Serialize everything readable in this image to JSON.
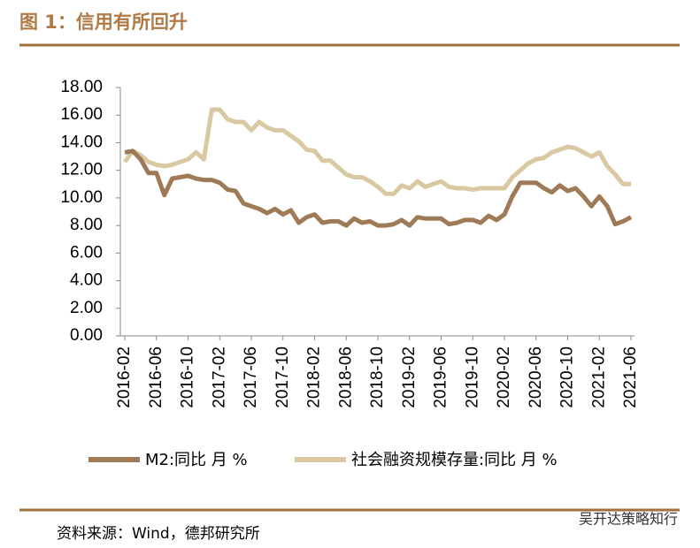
{
  "header": {
    "title": "图 1：信用有所回升"
  },
  "chart_data": {
    "type": "line",
    "categories": [
      "2016-02",
      null,
      null,
      null,
      "2016-06",
      null,
      null,
      null,
      "2016-10",
      null,
      null,
      null,
      "2017-02",
      null,
      null,
      null,
      "2017-06",
      null,
      null,
      null,
      "2017-10",
      null,
      null,
      null,
      "2018-02",
      null,
      null,
      null,
      "2018-06",
      null,
      null,
      null,
      "2018-10",
      null,
      null,
      null,
      "2019-02",
      null,
      null,
      null,
      "2019-06",
      null,
      null,
      null,
      "2019-10",
      null,
      null,
      null,
      "2020-02",
      null,
      null,
      null,
      "2020-06",
      null,
      null,
      null,
      "2020-10",
      null,
      null,
      null,
      "2021-02",
      null,
      null,
      null,
      "2021-06"
    ],
    "series": [
      {
        "name": "M2:同比 月 %",
        "color": "#9e7b56",
        "values": [
          13.3,
          13.4,
          12.8,
          11.8,
          11.8,
          10.2,
          11.4,
          11.5,
          11.6,
          11.4,
          11.3,
          11.3,
          11.1,
          10.6,
          10.5,
          9.6,
          9.4,
          9.2,
          8.9,
          9.2,
          8.8,
          9.1,
          8.2,
          8.6,
          8.8,
          8.2,
          8.3,
          8.3,
          8.0,
          8.5,
          8.2,
          8.3,
          8.0,
          8.0,
          8.1,
          8.4,
          8.0,
          8.6,
          8.5,
          8.5,
          8.5,
          8.1,
          8.2,
          8.4,
          8.4,
          8.2,
          8.7,
          8.4,
          8.8,
          10.1,
          11.1,
          11.1,
          11.1,
          10.7,
          10.4,
          10.9,
          10.5,
          10.7,
          10.1,
          9.4,
          10.1,
          9.4,
          8.1,
          8.3,
          8.6
        ]
      },
      {
        "name": "社会融资规模存量:同比 月 %",
        "color": "#d9c9a2",
        "values": [
          12.6,
          13.4,
          13.1,
          12.6,
          12.4,
          12.3,
          12.4,
          12.6,
          12.8,
          13.3,
          12.8,
          16.4,
          16.4,
          15.7,
          15.5,
          15.5,
          14.9,
          15.5,
          15.1,
          14.9,
          14.9,
          14.5,
          14.1,
          13.5,
          13.4,
          12.7,
          12.7,
          12.2,
          11.7,
          11.5,
          11.5,
          11.2,
          10.8,
          10.3,
          10.3,
          10.9,
          10.7,
          11.2,
          10.8,
          11.0,
          11.2,
          10.8,
          10.7,
          10.7,
          10.6,
          10.7,
          10.7,
          10.7,
          10.7,
          11.5,
          12.0,
          12.5,
          12.8,
          12.9,
          13.3,
          13.5,
          13.7,
          13.6,
          13.3,
          13.0,
          13.3,
          12.3,
          11.7,
          11.0,
          11.0
        ]
      }
    ],
    "ylim": [
      0,
      18
    ],
    "yticks": [
      {
        "value": 0,
        "label": "0.00"
      },
      {
        "value": 2,
        "label": "2.00"
      },
      {
        "value": 4,
        "label": "4.00"
      },
      {
        "value": 6,
        "label": "6.00"
      },
      {
        "value": 8,
        "label": "8.00"
      },
      {
        "value": 10,
        "label": "10.00"
      },
      {
        "value": 12,
        "label": "12.00"
      },
      {
        "value": 14,
        "label": "14.00"
      },
      {
        "value": 16,
        "label": "16.00"
      },
      {
        "value": 18,
        "label": "18.00"
      }
    ],
    "grid": false,
    "legend": "bottom"
  },
  "footer": {
    "source": "资料来源：Wind，德邦研究所",
    "watermark": "吴开达策略知行"
  }
}
